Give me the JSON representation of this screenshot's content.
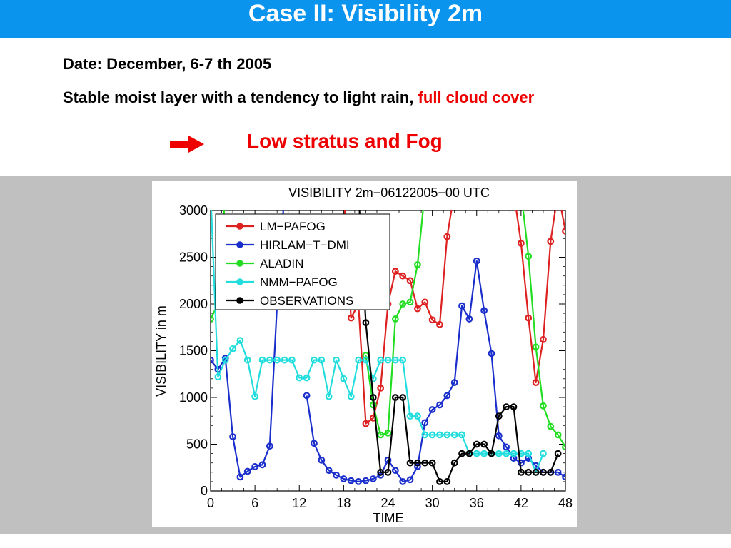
{
  "slide": {
    "title": "Case II: Visibility 2m",
    "date": "Date: December, 6-7 th 2005",
    "description_prefix": "Stable moist layer with a tendency to light rain,",
    "description_highlight": "full cloud cover",
    "conclusion": "Low stratus and Fog"
  },
  "colors": {
    "title_bar": "#0a94ee",
    "highlight": "#ee0000",
    "background_band": "#c0c0c0"
  },
  "chart_data": {
    "type": "line",
    "title": "VISIBILITY 2m−06122005−00 UTC",
    "xlabel": "TIME",
    "ylabel": "VISIBILITY in m",
    "xlim": [
      0,
      48
    ],
    "ylim": [
      0,
      3000
    ],
    "xticks": [
      0,
      6,
      12,
      18,
      24,
      30,
      36,
      42,
      48
    ],
    "yticks": [
      0,
      500,
      1000,
      1500,
      2000,
      2500,
      3000
    ],
    "legend_position": "top-left",
    "series": [
      {
        "name": "LM−PAFOG",
        "color": "#dd2020",
        "points": [
          [
            18,
            3200
          ],
          [
            19,
            1850
          ],
          [
            20,
            2000
          ],
          [
            21,
            720
          ],
          [
            22,
            780
          ],
          [
            23,
            1100
          ],
          [
            24,
            2000
          ],
          [
            25,
            2350
          ],
          [
            26,
            2300
          ],
          [
            27,
            2250
          ],
          [
            28,
            1950
          ],
          [
            29,
            2020
          ],
          [
            30,
            1830
          ],
          [
            31,
            1780
          ],
          [
            32,
            2720
          ],
          [
            33,
            3200
          ],
          [
            41,
            3200
          ],
          [
            42,
            2650
          ],
          [
            43,
            1850
          ],
          [
            44,
            1160
          ],
          [
            45,
            1620
          ],
          [
            46,
            2670
          ],
          [
            47,
            3200
          ],
          [
            48,
            2780
          ]
        ]
      },
      {
        "name": "HIRLAM−T−DMI",
        "color": "#1a2ecc",
        "points": [
          [
            0,
            1400
          ],
          [
            1,
            1300
          ],
          [
            2,
            1420
          ],
          [
            3,
            580
          ],
          [
            4,
            150
          ],
          [
            5,
            210
          ],
          [
            6,
            260
          ],
          [
            7,
            280
          ],
          [
            8,
            480
          ],
          [
            9,
            2000
          ],
          [
            10,
            3200
          ],
          [
            13,
            1020
          ],
          [
            14,
            510
          ],
          [
            15,
            330
          ],
          [
            16,
            220
          ],
          [
            17,
            170
          ],
          [
            18,
            130
          ],
          [
            19,
            110
          ],
          [
            20,
            100
          ],
          [
            21,
            110
          ],
          [
            22,
            130
          ],
          [
            23,
            170
          ],
          [
            24,
            330
          ],
          [
            25,
            220
          ],
          [
            26,
            100
          ],
          [
            27,
            120
          ],
          [
            28,
            260
          ],
          [
            29,
            730
          ],
          [
            30,
            870
          ],
          [
            31,
            920
          ],
          [
            32,
            1020
          ],
          [
            33,
            1160
          ],
          [
            34,
            1980
          ],
          [
            35,
            1840
          ],
          [
            36,
            2460
          ],
          [
            37,
            1930
          ],
          [
            38,
            1470
          ],
          [
            39,
            590
          ],
          [
            40,
            470
          ],
          [
            41,
            350
          ],
          [
            42,
            300
          ],
          [
            43,
            350
          ],
          [
            44,
            270
          ],
          [
            45,
            200
          ],
          [
            46,
            200
          ],
          [
            47,
            200
          ],
          [
            48,
            150
          ]
        ]
      },
      {
        "name": "ALADIN",
        "color": "#22dd22",
        "points": [
          [
            0,
            1840
          ],
          [
            1,
            2000
          ],
          [
            2,
            3200
          ],
          [
            21,
            1450
          ],
          [
            22,
            920
          ],
          [
            23,
            600
          ],
          [
            24,
            620
          ],
          [
            25,
            1840
          ],
          [
            26,
            2000
          ],
          [
            27,
            2020
          ],
          [
            28,
            2420
          ],
          [
            29,
            3200
          ],
          [
            42,
            3200
          ],
          [
            43,
            2510
          ],
          [
            44,
            1540
          ],
          [
            45,
            910
          ],
          [
            46,
            690
          ],
          [
            47,
            600
          ],
          [
            48,
            470
          ]
        ]
      },
      {
        "name": "NMM−PAFOG",
        "color": "#22dddd",
        "points": [
          [
            0,
            3200
          ],
          [
            1,
            1220
          ],
          [
            2,
            1400
          ],
          [
            3,
            1520
          ],
          [
            4,
            1610
          ],
          [
            5,
            1400
          ],
          [
            6,
            1010
          ],
          [
            7,
            1400
          ],
          [
            8,
            1400
          ],
          [
            9,
            1400
          ],
          [
            10,
            1400
          ],
          [
            11,
            1400
          ],
          [
            12,
            1210
          ],
          [
            13,
            1210
          ],
          [
            14,
            1400
          ],
          [
            15,
            1400
          ],
          [
            16,
            1010
          ],
          [
            17,
            1400
          ],
          [
            18,
            1200
          ],
          [
            19,
            1010
          ],
          [
            20,
            1400
          ],
          [
            21,
            1400
          ],
          [
            22,
            1200
          ],
          [
            23,
            1400
          ],
          [
            24,
            1400
          ],
          [
            25,
            1400
          ],
          [
            26,
            1400
          ],
          [
            27,
            800
          ],
          [
            28,
            800
          ],
          [
            29,
            600
          ],
          [
            30,
            600
          ],
          [
            31,
            600
          ],
          [
            32,
            600
          ],
          [
            33,
            600
          ],
          [
            34,
            600
          ],
          [
            35,
            400
          ],
          [
            36,
            400
          ],
          [
            37,
            400
          ],
          [
            38,
            400
          ],
          [
            39,
            400
          ],
          [
            40,
            400
          ],
          [
            41,
            400
          ],
          [
            42,
            400
          ],
          [
            43,
            400
          ],
          [
            44,
            200
          ],
          [
            45,
            400
          ]
        ]
      },
      {
        "name": "OBSERVATIONS",
        "color": "#000000",
        "points": [
          [
            20,
            3200
          ],
          [
            21,
            1800
          ],
          [
            22,
            1000
          ],
          [
            23,
            200
          ],
          [
            24,
            200
          ],
          [
            25,
            1000
          ],
          [
            26,
            1000
          ],
          [
            27,
            300
          ],
          [
            28,
            300
          ],
          [
            29,
            300
          ],
          [
            30,
            300
          ],
          [
            31,
            100
          ],
          [
            32,
            100
          ],
          [
            33,
            300
          ],
          [
            34,
            400
          ],
          [
            35,
            400
          ],
          [
            36,
            500
          ],
          [
            37,
            500
          ],
          [
            38,
            400
          ],
          [
            39,
            800
          ],
          [
            40,
            900
          ],
          [
            41,
            900
          ],
          [
            42,
            200
          ],
          [
            43,
            200
          ],
          [
            44,
            200
          ],
          [
            45,
            200
          ],
          [
            46,
            200
          ],
          [
            47,
            400
          ]
        ]
      }
    ]
  }
}
